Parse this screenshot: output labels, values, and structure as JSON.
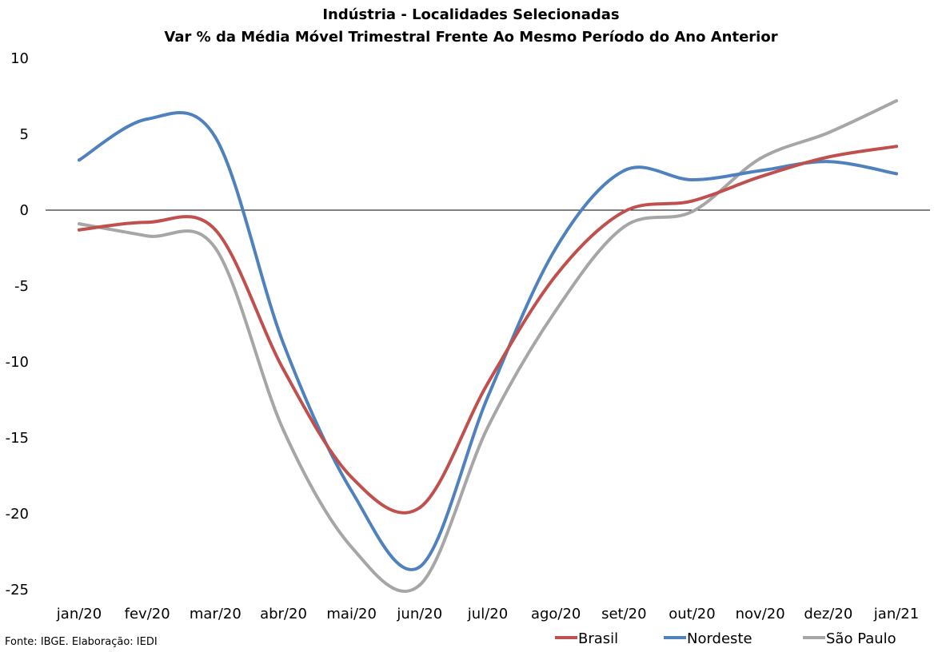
{
  "chart_data": {
    "type": "line",
    "title": "Indústria - Localidades Selecionadas",
    "subtitle": "Var % da Média Móvel Trimestral Frente Ao Mesmo Período do Ano Anterior",
    "categories": [
      "jan/20",
      "fev/20",
      "mar/20",
      "abr/20",
      "mai/20",
      "jun/20",
      "jul/20",
      "ago/20",
      "set/20",
      "out/20",
      "nov/20",
      "dez/20",
      "jan/21"
    ],
    "ylim": [
      -25,
      10
    ],
    "yticks": [
      "10",
      "5",
      "0",
      "-5",
      "-10",
      "-15",
      "-20",
      "-25"
    ],
    "grid": false,
    "legend_position": "bottom-right",
    "series": [
      {
        "name": "Brasil",
        "color": "#c0504d",
        "values": [
          -1.3,
          -0.8,
          -1.3,
          -10.5,
          -17.6,
          -19.6,
          -11.4,
          -4.3,
          -0.1,
          0.6,
          2.2,
          3.5,
          4.2
        ]
      },
      {
        "name": "Nordeste",
        "color": "#4f81bd",
        "values": [
          3.3,
          6.0,
          4.8,
          -8.8,
          -18.5,
          -23.5,
          -12.3,
          -2.5,
          2.6,
          2.0,
          2.6,
          3.2,
          2.4
        ]
      },
      {
        "name": "São Paulo",
        "color": "#a6a6a6",
        "values": [
          -0.9,
          -1.7,
          -2.5,
          -14.5,
          -22.2,
          -24.7,
          -14.3,
          -6.6,
          -1.1,
          -0.1,
          3.4,
          5.1,
          7.2
        ]
      }
    ]
  },
  "source": "Fonte: IBGE. Elaboração: IEDI"
}
